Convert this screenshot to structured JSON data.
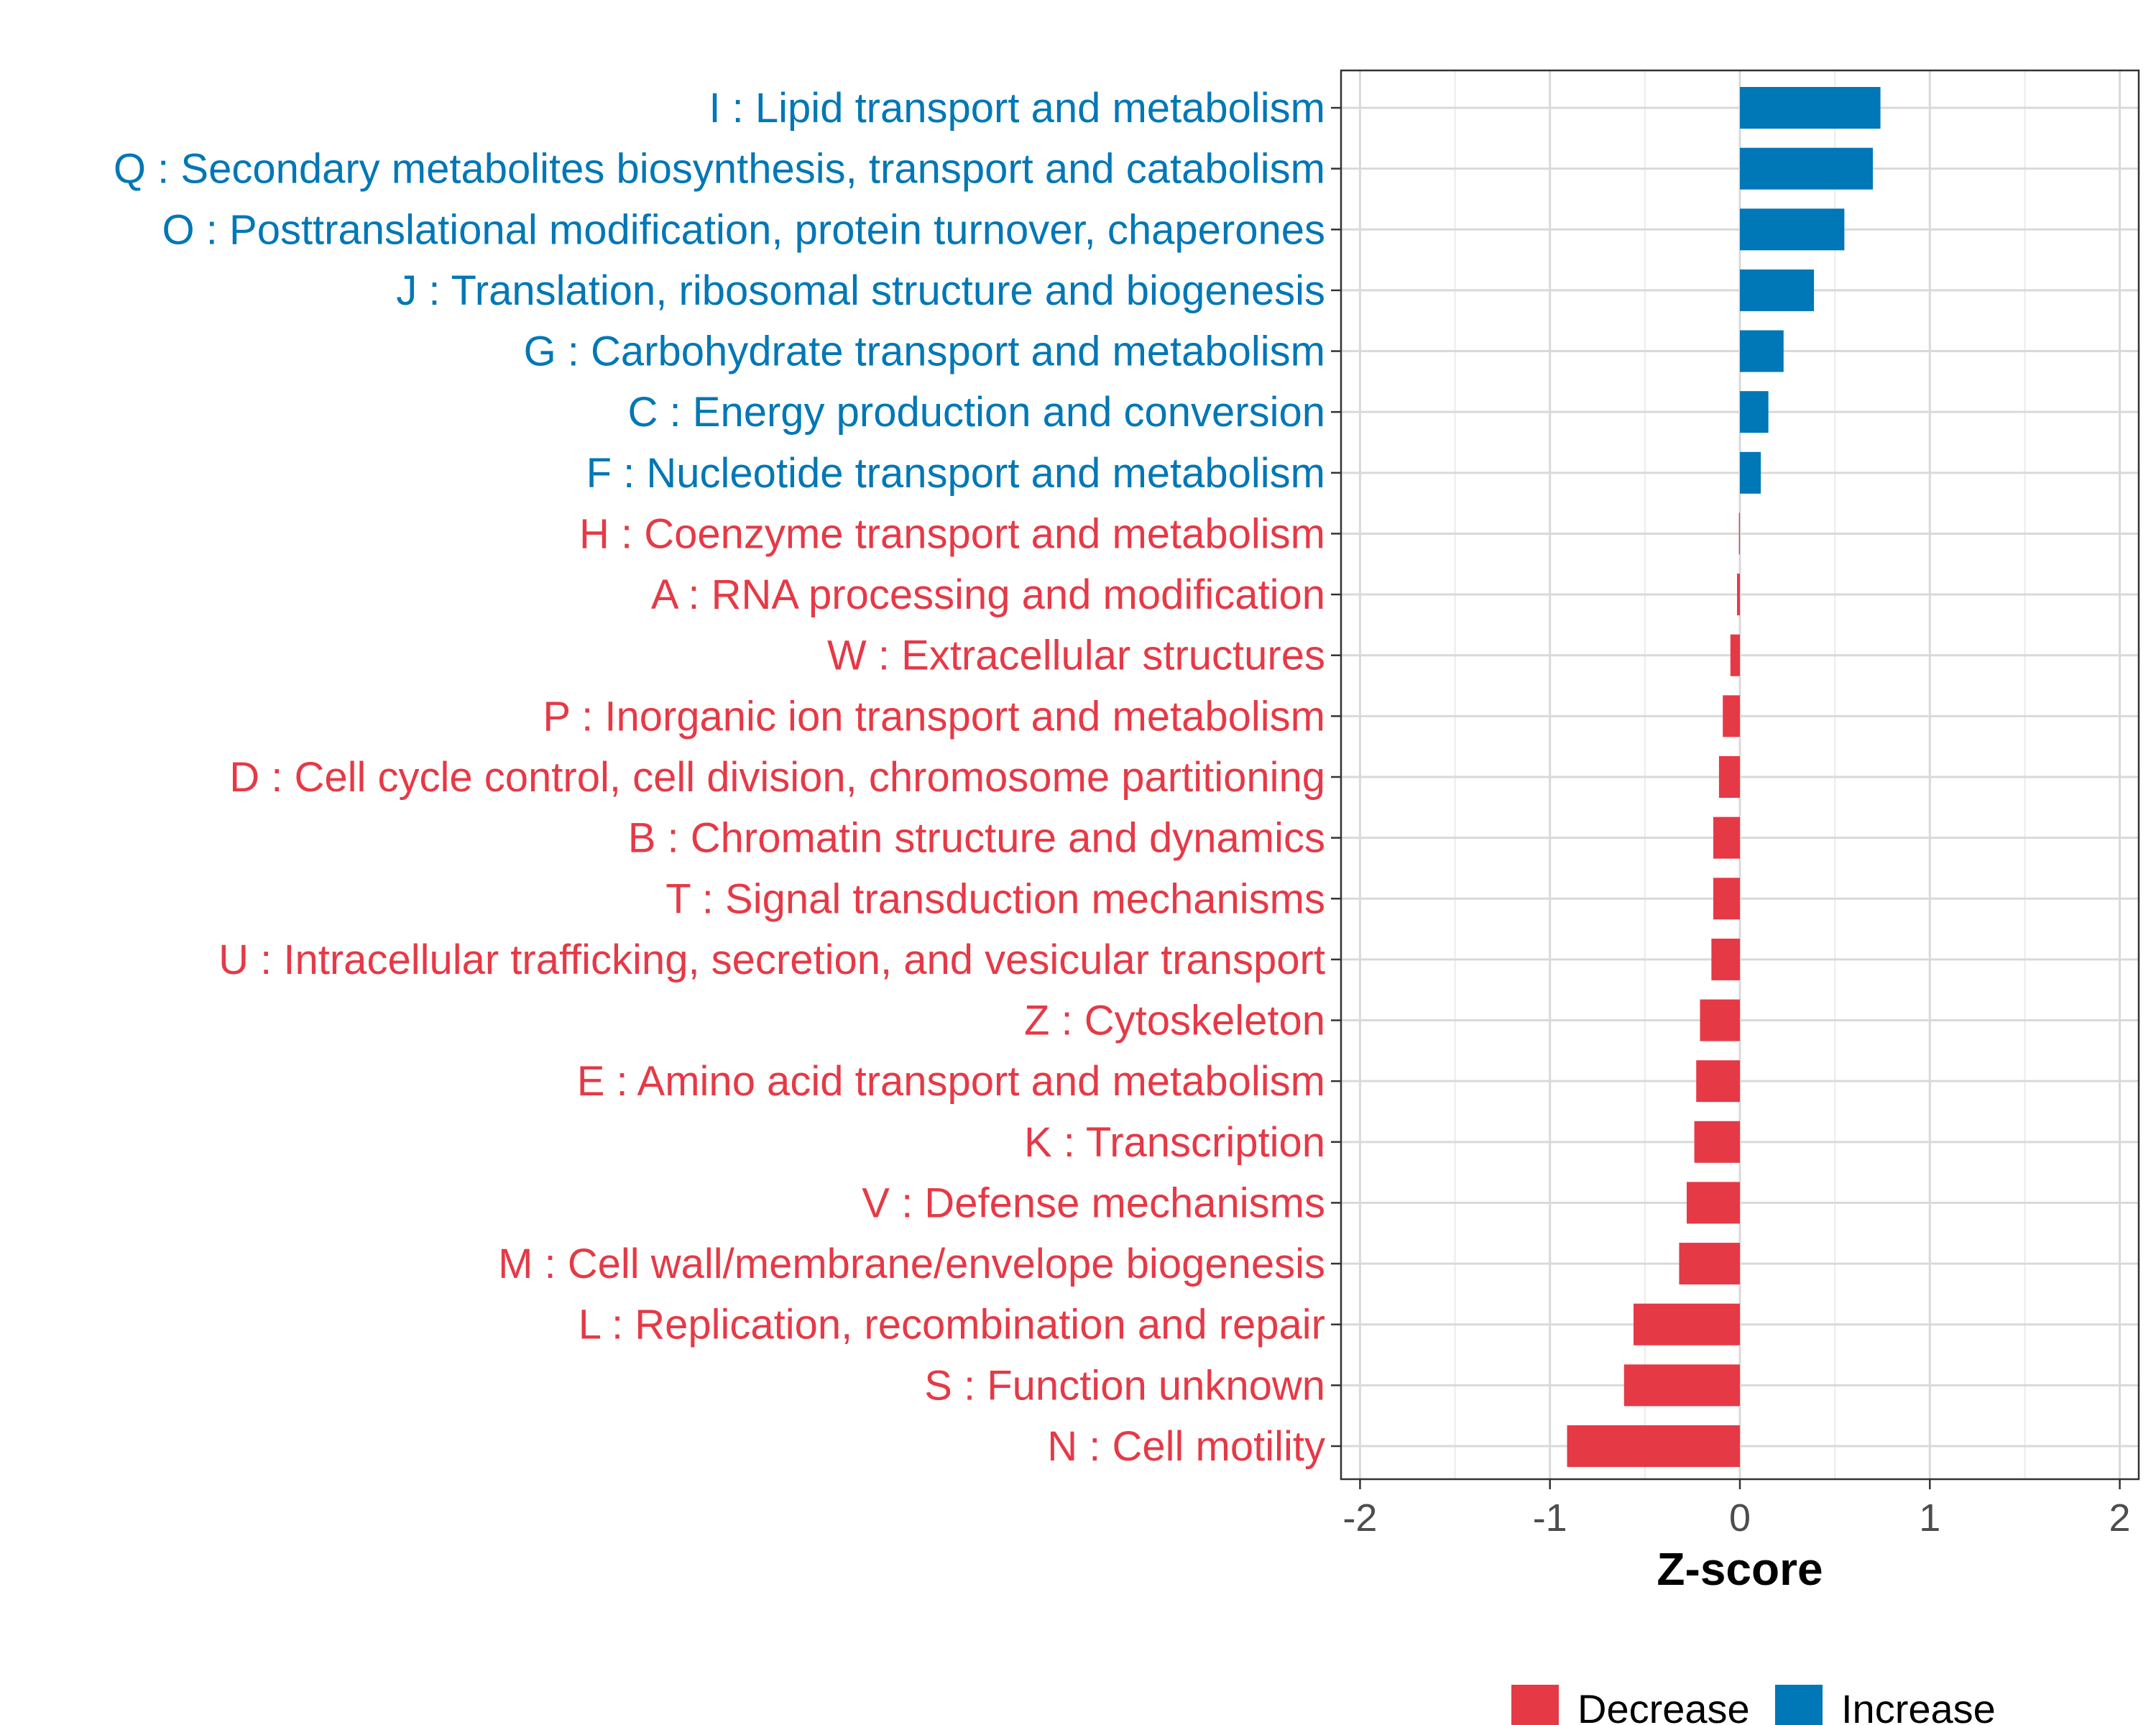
{
  "chart_data": {
    "type": "bar",
    "orientation": "horizontal",
    "xlabel": "Z-score",
    "ylabel": "",
    "xlim": [
      -2.1,
      2.1
    ],
    "xticks": [
      -2,
      -1,
      0,
      1,
      2
    ],
    "xtick_labels": [
      "-2",
      "-1",
      "0",
      "1",
      "2"
    ],
    "grid": true,
    "colors": {
      "Decrease": "#e63946",
      "Increase": "#0077b6"
    },
    "legend": {
      "placement": "bottom",
      "entries": [
        {
          "label": "Decrease",
          "color": "#e63946"
        },
        {
          "label": "Increase",
          "color": "#0077b6"
        }
      ]
    },
    "categories": [
      "I : Lipid transport and metabolism",
      "Q : Secondary metabolites biosynthesis, transport and catabolism",
      "O : Posttranslational modification, protein turnover, chaperones",
      "J : Translation, ribosomal structure and biogenesis",
      "G : Carbohydrate transport and metabolism",
      "C : Energy production and conversion",
      "F : Nucleotide transport and metabolism",
      "H : Coenzyme transport and metabolism",
      "A : RNA processing and modification",
      "W : Extracellular structures",
      "P : Inorganic ion transport and metabolism",
      "D : Cell cycle control, cell division, chromosome partitioning",
      "B : Chromatin structure and dynamics",
      "T : Signal transduction mechanisms",
      "U : Intracellular trafficking, secretion, and vesicular transport",
      "Z : Cytoskeleton",
      "E : Amino acid transport and metabolism",
      "K : Transcription",
      "V : Defense mechanisms",
      "M : Cell wall/membrane/envelope biogenesis",
      "L : Replication, recombination and repair",
      "S : Function unknown",
      "N : Cell motility"
    ],
    "values": [
      0.74,
      0.7,
      0.55,
      0.39,
      0.23,
      0.15,
      0.11,
      -0.005,
      -0.015,
      -0.05,
      -0.09,
      -0.11,
      -0.14,
      -0.14,
      -0.15,
      -0.21,
      -0.23,
      -0.24,
      -0.28,
      -0.32,
      -0.56,
      -0.61,
      -0.91
    ],
    "groups": [
      "Increase",
      "Increase",
      "Increase",
      "Increase",
      "Increase",
      "Increase",
      "Increase",
      "Decrease",
      "Decrease",
      "Decrease",
      "Decrease",
      "Decrease",
      "Decrease",
      "Decrease",
      "Decrease",
      "Decrease",
      "Decrease",
      "Decrease",
      "Decrease",
      "Decrease",
      "Decrease",
      "Decrease",
      "Decrease"
    ]
  }
}
